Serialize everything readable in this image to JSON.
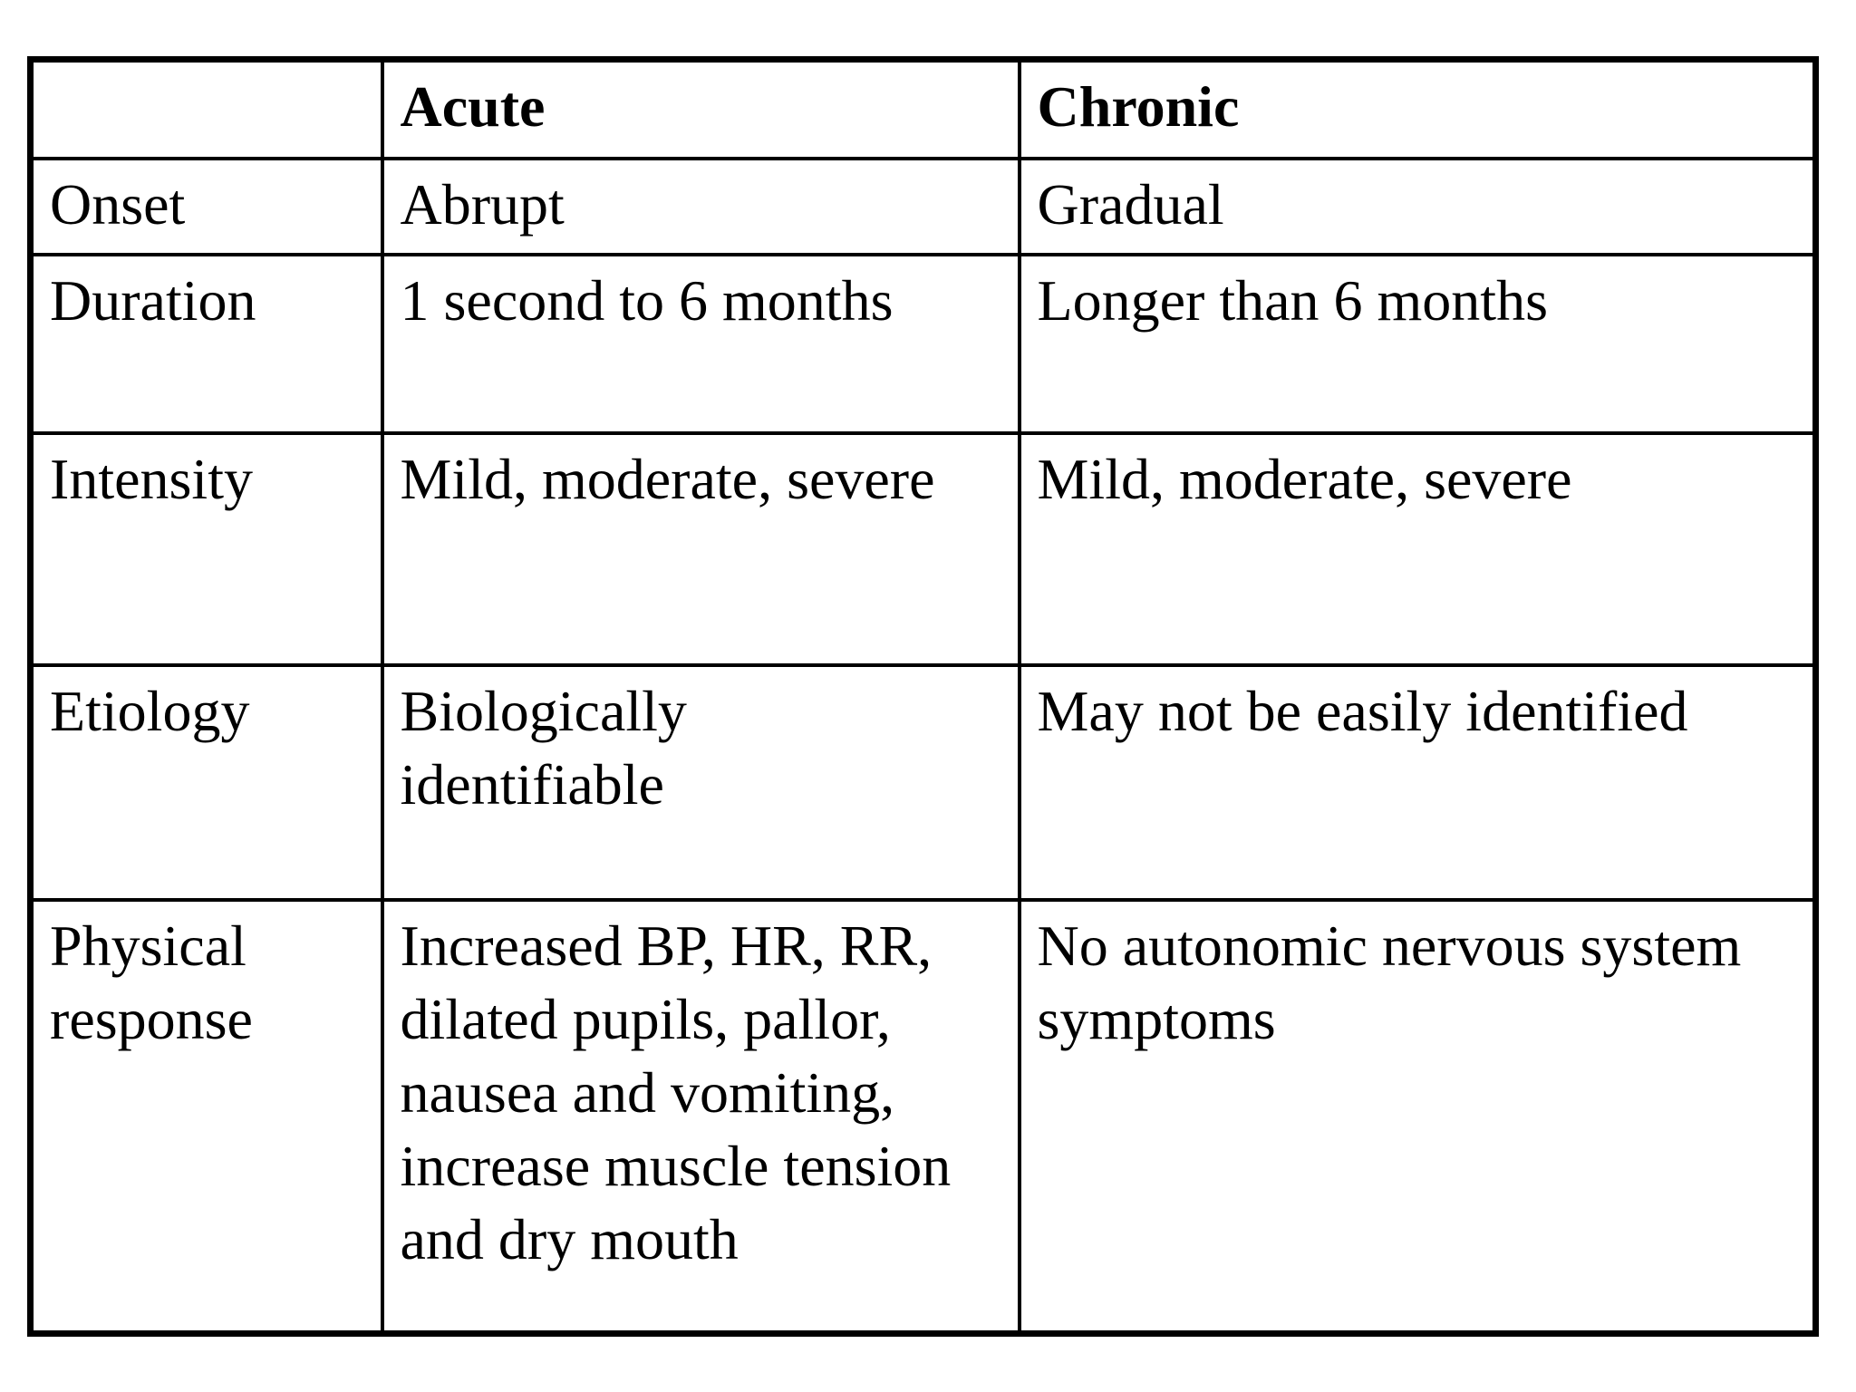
{
  "page": {
    "background_color": "#ffffff",
    "text_color": "#000000",
    "border_color": "#000000"
  },
  "table": {
    "header": {
      "col1": "",
      "col2": "Acute",
      "col3": "Chronic"
    },
    "rows": [
      {
        "label": "Onset",
        "acute": "Abrupt",
        "chronic": "Gradual"
      },
      {
        "label": "Duration",
        "acute": "1 second to 6 months",
        "chronic": "Longer than 6 months"
      },
      {
        "label": "Intensity",
        "acute": "Mild, moderate, severe",
        "chronic": "Mild, moderate, severe"
      },
      {
        "label": "Etiology",
        "acute": "Biologically\nidentifiable",
        "chronic": "May not be easily identified"
      },
      {
        "label": "Physical\nresponse",
        "acute": "Increased BP, HR, RR,\ndilated pupils, pallor,\nnausea and vomiting,\nincrease muscle tension\nand dry mouth",
        "chronic": "No autonomic nervous system\nsymptoms"
      }
    ]
  }
}
